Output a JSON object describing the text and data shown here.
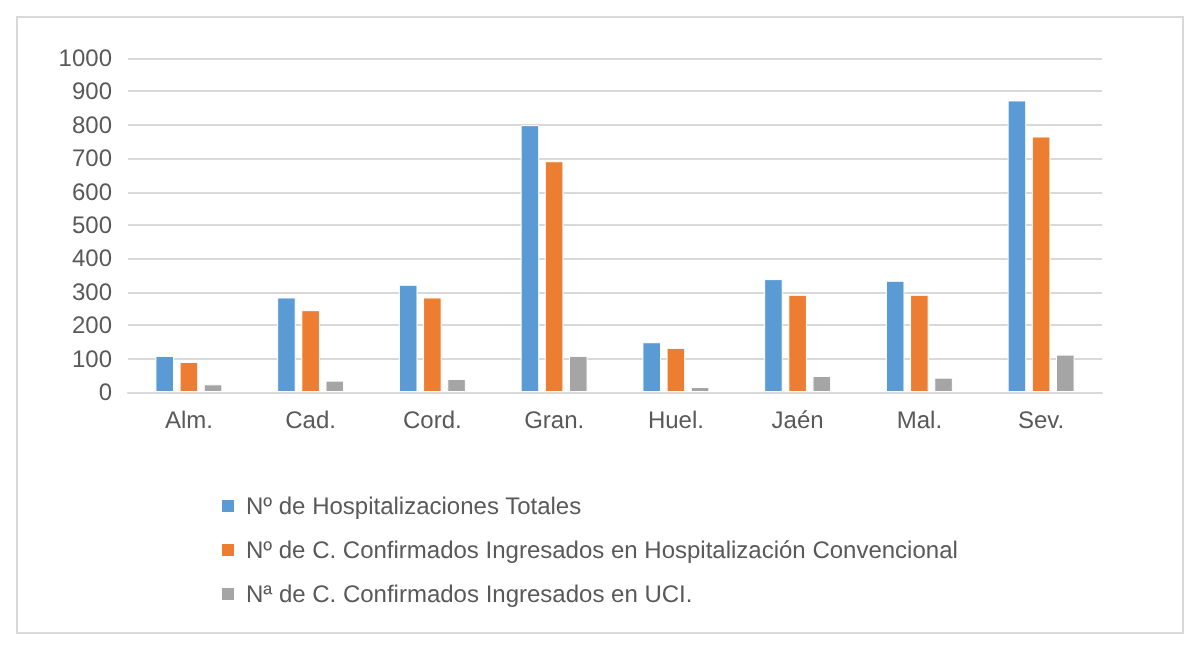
{
  "chart_data": {
    "type": "bar",
    "categories": [
      "Alm.",
      "Cad.",
      "Cord.",
      "Gran.",
      "Huel.",
      "Jaén",
      "Mal.",
      "Sev."
    ],
    "series": [
      {
        "name": "Nº de Hospitalizaciones Totales",
        "color": "#5b9bd5",
        "values": [
          108,
          283,
          321,
          799,
          149,
          338,
          333,
          873
        ]
      },
      {
        "name": "Nº de C. Confirmados Ingresados en Hospitalización Convencional",
        "color": "#ed7d31",
        "values": [
          90,
          245,
          283,
          691,
          132,
          291,
          291,
          765
        ]
      },
      {
        "name": "Nª de C. Confirmados Ingresados en UCI.",
        "color": "#a5a5a5",
        "values": [
          23,
          34,
          39,
          108,
          15,
          48,
          43,
          112
        ]
      }
    ],
    "ylim": [
      0,
      1000
    ],
    "yticks": [
      0,
      100,
      200,
      300,
      400,
      500,
      600,
      700,
      800,
      900,
      1000
    ],
    "grid": "y",
    "legend": "bottom"
  }
}
